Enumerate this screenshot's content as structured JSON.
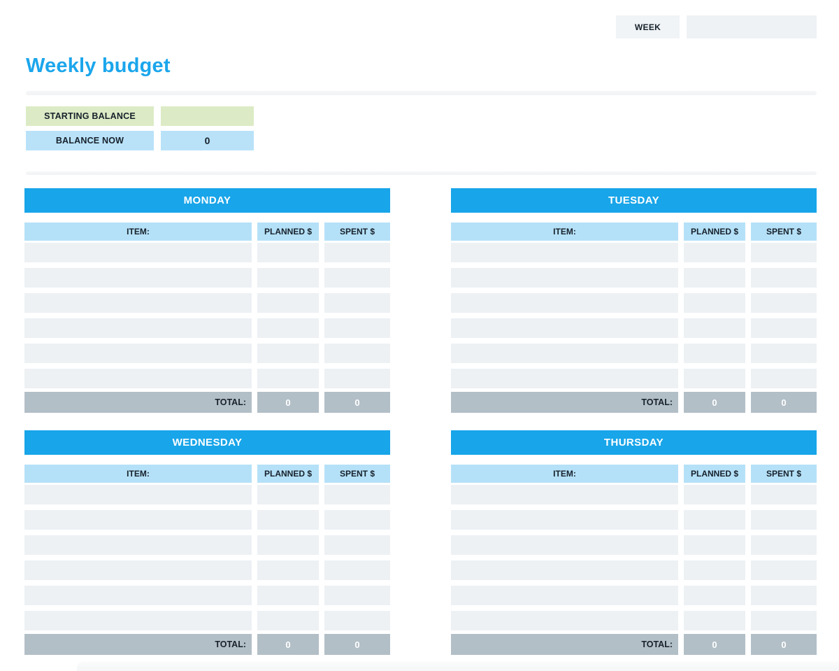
{
  "header": {
    "week_label": "WEEK",
    "week_value": ""
  },
  "page": {
    "title": "Weekly budget"
  },
  "balance": {
    "starting_label": "STARTING BALANCE",
    "starting_value": "",
    "now_label": "BALANCE NOW",
    "now_value": "0"
  },
  "tables": {
    "columns": {
      "item": "ITEM:",
      "planned": "PLANNED $",
      "spent": "SPENT $"
    },
    "total_label": "TOTAL:",
    "days": [
      {
        "name": "MONDAY",
        "rows": [
          [
            "",
            "",
            ""
          ],
          [
            "",
            "",
            ""
          ],
          [
            "",
            "",
            ""
          ],
          [
            "",
            "",
            ""
          ],
          [
            "",
            "",
            ""
          ],
          [
            "",
            "",
            ""
          ]
        ],
        "total_planned": "0",
        "total_spent": "0"
      },
      {
        "name": "TUESDAY",
        "rows": [
          [
            "",
            "",
            ""
          ],
          [
            "",
            "",
            ""
          ],
          [
            "",
            "",
            ""
          ],
          [
            "",
            "",
            ""
          ],
          [
            "",
            "",
            ""
          ],
          [
            "",
            "",
            ""
          ]
        ],
        "total_planned": "0",
        "total_spent": "0"
      },
      {
        "name": "WEDNESDAY",
        "rows": [
          [
            "",
            "",
            ""
          ],
          [
            "",
            "",
            ""
          ],
          [
            "",
            "",
            ""
          ],
          [
            "",
            "",
            ""
          ],
          [
            "",
            "",
            ""
          ],
          [
            "",
            "",
            ""
          ]
        ],
        "total_planned": "0",
        "total_spent": "0"
      },
      {
        "name": "THURSDAY",
        "rows": [
          [
            "",
            "",
            ""
          ],
          [
            "",
            "",
            ""
          ],
          [
            "",
            "",
            ""
          ],
          [
            "",
            "",
            ""
          ],
          [
            "",
            "",
            ""
          ],
          [
            "",
            "",
            ""
          ]
        ],
        "total_planned": "0",
        "total_spent": "0"
      }
    ]
  },
  "colors": {
    "accent_blue": "#18a5e9",
    "title_blue": "#1ba6ec",
    "light_blue": "#b5e1f8",
    "balance_blue": "#b9e2f9",
    "green": "#dcebc5",
    "row_gray": "#edf1f4",
    "total_gray": "#b3bfc7",
    "box_gray": "#f0f4f6"
  }
}
